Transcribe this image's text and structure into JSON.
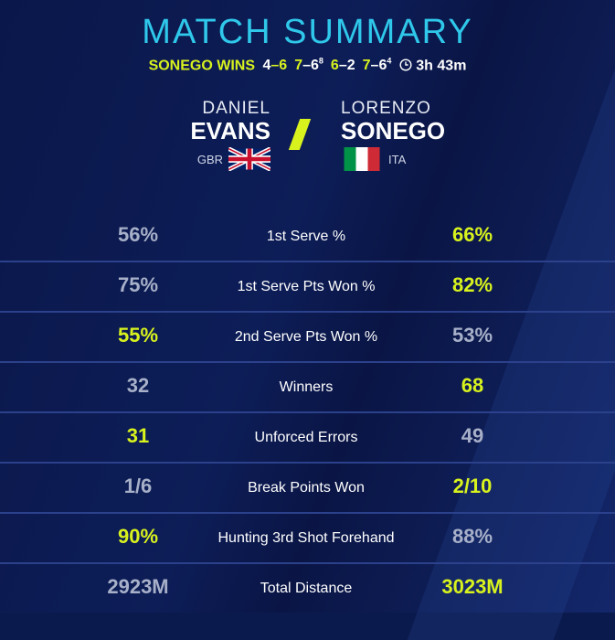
{
  "title": "MATCH SUMMARY",
  "result": {
    "winner_text": "SONEGO WINS",
    "sets": [
      {
        "a": "4",
        "b": "6",
        "tb": "",
        "a_win": false
      },
      {
        "a": "7",
        "b": "6",
        "tb": "8",
        "a_win": true
      },
      {
        "a": "6",
        "b": "2",
        "tb": "",
        "a_win": true
      },
      {
        "a": "7",
        "b": "6",
        "tb": "4",
        "a_win": true
      }
    ],
    "clock_icon": "clock-icon",
    "duration": "3h 43m"
  },
  "players": [
    {
      "first": "DANIEL",
      "last": "EVANS",
      "country": "GBR",
      "flag": "uk-flag"
    },
    {
      "first": "LORENZO",
      "last": "SONEGO",
      "country": "ITA",
      "flag": "italy-flag"
    }
  ],
  "colors": {
    "accent": "#d8f21e",
    "title": "#2fc8ea",
    "background": "#0b1a4d"
  },
  "stats": [
    {
      "label": "1st Serve %",
      "left": "56%",
      "right": "66%",
      "leader": "right"
    },
    {
      "label": "1st Serve Pts Won %",
      "left": "75%",
      "right": "82%",
      "leader": "right"
    },
    {
      "label": "2nd Serve Pts Won %",
      "left": "55%",
      "right": "53%",
      "leader": "left"
    },
    {
      "label": "Winners",
      "left": "32",
      "right": "68",
      "leader": "right"
    },
    {
      "label": "Unforced Errors",
      "left": "31",
      "right": "49",
      "leader": "left"
    },
    {
      "label": "Break Points Won",
      "left": "1/6",
      "right": "2/10",
      "leader": "right"
    },
    {
      "label": "Hunting 3rd Shot Forehand",
      "left": "90%",
      "right": "88%",
      "leader": "left"
    },
    {
      "label": "Total Distance",
      "left": "2923M",
      "right": "3023M",
      "leader": "right"
    }
  ]
}
